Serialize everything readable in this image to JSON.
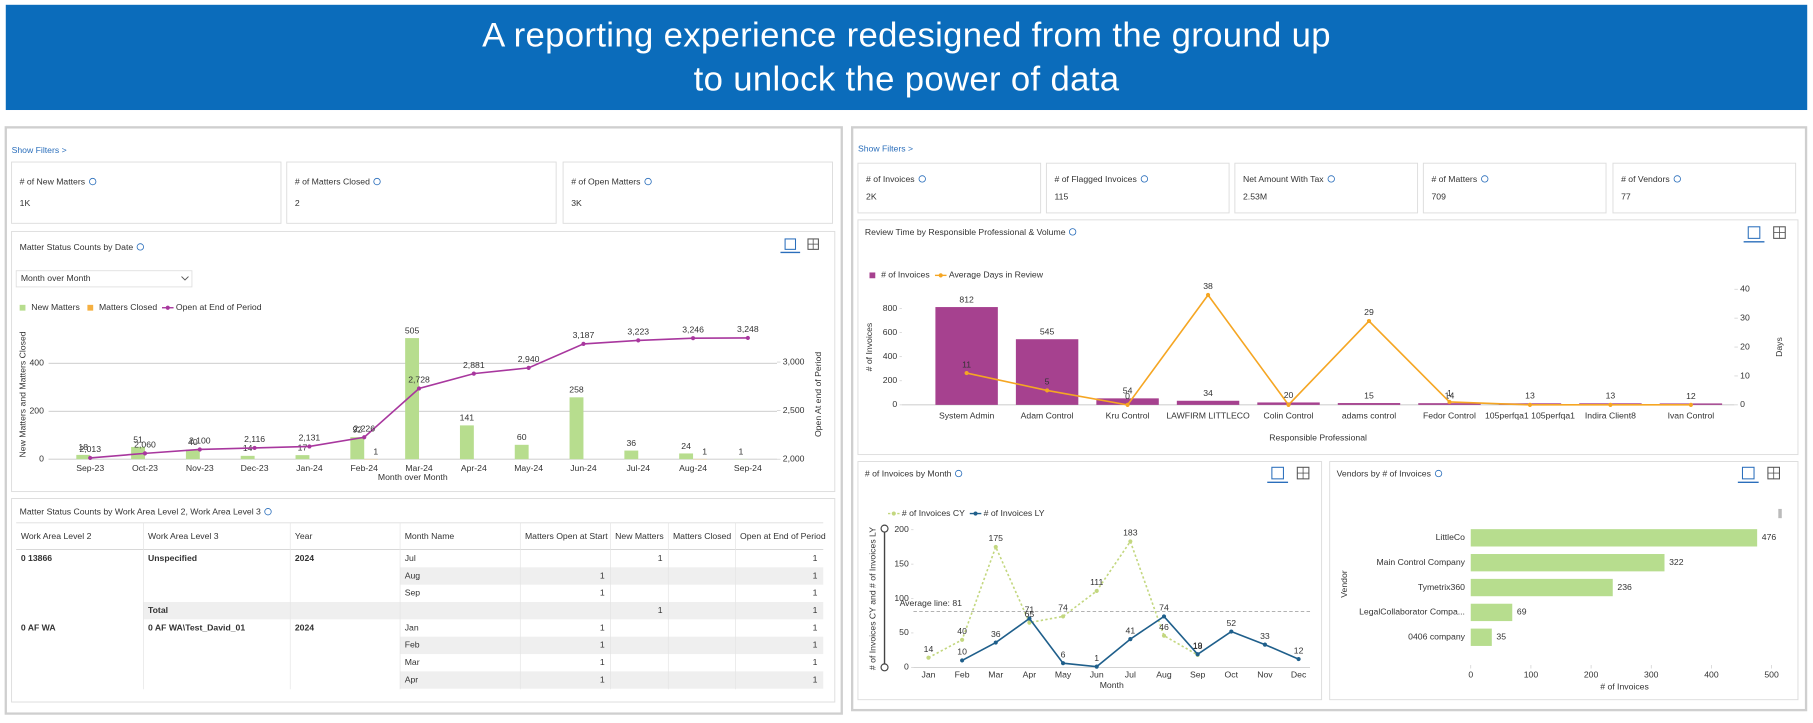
{
  "banner": {
    "title_lines": [
      "A reporting experience redesigned from the ground up",
      "to unlock the power of data"
    ]
  },
  "left": {
    "show_filters": "Show Filters >",
    "kpis": [
      {
        "label": "# of New Matters",
        "value": "1K"
      },
      {
        "label": "# of Matters Closed",
        "value": 2
      },
      {
        "label": "# of Open Matters",
        "value": "3K"
      }
    ],
    "status_chart": {
      "type": "combo",
      "title": "Matter Status Counts by Date",
      "period_select": "Month over Month",
      "x_label": "Month over Month",
      "y_label": "New Matters and Matters Closed",
      "y2_label": "Open At end of Period",
      "categories": [
        "Sep-23",
        "Oct-23",
        "Nov-23",
        "Dec-23",
        "Jan-24",
        "Feb-24",
        "Mar-24",
        "Apr-24",
        "May-24",
        "Jun-24",
        "Jul-24",
        "Aug-24",
        "Sep-24"
      ],
      "ylim": [
        0,
        540
      ],
      "yticks": [
        0,
        200,
        400
      ],
      "y2lim": [
        2000,
        3333
      ],
      "y2ticks": [
        {
          "value": 2000,
          "label": "2,000"
        },
        {
          "value": 2500,
          "label": "2,500"
        },
        {
          "value": 3000,
          "label": "3,000"
        }
      ],
      "grid": true,
      "series": [
        {
          "name": "New Matters",
          "kind": "bar",
          "color": "#b7dd8e",
          "values": [
            18,
            51,
            40,
            14,
            17,
            92,
            505,
            141,
            60,
            258,
            36,
            24,
            1
          ]
        },
        {
          "name": "Matters Closed",
          "kind": "bar",
          "color": "#f5b041",
          "values": [
            0,
            0,
            0,
            0,
            0,
            1,
            0,
            0,
            0,
            0,
            0,
            1,
            0
          ],
          "value_labels": [
            null,
            null,
            null,
            null,
            null,
            "1",
            null,
            null,
            null,
            null,
            null,
            "1",
            null
          ]
        },
        {
          "name": "Open at End of Period",
          "kind": "line",
          "axis": "y2",
          "color": "#a8379e",
          "values": [
            2013,
            2060,
            2100,
            2116,
            2131,
            2226,
            2728,
            2881,
            2940,
            3187,
            3223,
            3246,
            3248
          ],
          "value_labels": [
            "2,013",
            "2,060",
            "2,100",
            "2,116",
            "2,131",
            "2,226",
            "2,728",
            "2,881",
            "2,940",
            "3,187",
            "3,223",
            "3,246",
            "3,248"
          ]
        }
      ]
    },
    "matter_table": {
      "title": "Matter Status Counts by Work Area Level 2, Work Area Level 3",
      "columns": [
        "Work Area Level 2",
        "Work Area Level 3",
        "Year",
        "Month Name",
        "Matters Open at Start",
        "New Matters",
        "Matters Closed",
        "Open at End of Period"
      ],
      "rows": [
        [
          "0 13866",
          "Unspecified",
          2024,
          "Jul",
          null,
          1,
          null,
          1
        ],
        [
          null,
          null,
          null,
          "Aug",
          1,
          null,
          null,
          1
        ],
        [
          null,
          null,
          null,
          "Sep",
          1,
          null,
          null,
          1
        ],
        [
          null,
          "Total",
          null,
          null,
          null,
          1,
          null,
          1
        ],
        [
          "0 AF WA",
          "0 AF WA\\Test_David_01",
          2024,
          "Jan",
          1,
          null,
          null,
          1
        ],
        [
          null,
          null,
          null,
          "Feb",
          1,
          null,
          null,
          1
        ],
        [
          null,
          null,
          null,
          "Mar",
          1,
          null,
          null,
          1
        ],
        [
          null,
          null,
          null,
          "Apr",
          1,
          null,
          null,
          1
        ]
      ]
    }
  },
  "right": {
    "show_filters": "Show Filters >",
    "kpis": [
      {
        "label": "# of Invoices",
        "value": "2K"
      },
      {
        "label": "# of Flagged Invoices",
        "value": 115
      },
      {
        "label": "Net Amount With Tax",
        "value": "2.53M"
      },
      {
        "label": "# of Matters",
        "value": 709
      },
      {
        "label": "# of Vendors",
        "value": 77
      }
    ],
    "review_chart": {
      "type": "combo",
      "title": "Review Time by Responsible Professional & Volume",
      "x_label": "Responsible Professional",
      "y_label": "# of Invoices",
      "y2_label": "Days",
      "categories": [
        "System Admin",
        "Adam Control",
        "Kru Control",
        "LAWFIRM LITTLECO",
        "Colin Control",
        "adams control",
        "Fedor Control",
        "105perfqa1 105perfqa1",
        "Indira Client8",
        "Ivan Control"
      ],
      "ylim": [
        0,
        960
      ],
      "yticks": [
        0,
        200,
        400,
        600,
        800
      ],
      "y2lim": [
        0,
        40
      ],
      "y2ticks": [
        0,
        10,
        20,
        30,
        40
      ],
      "grid": false,
      "series": [
        {
          "name": "# of Invoices",
          "kind": "bar",
          "color": "#a6418f",
          "values": [
            812,
            545,
            54,
            34,
            20,
            15,
            14,
            13,
            13,
            12
          ]
        },
        {
          "name": "Average Days in Review",
          "kind": "line",
          "axis": "y2",
          "color": "#f5a623",
          "values": [
            11,
            5,
            0,
            38,
            0,
            29,
            1,
            0,
            0,
            0
          ],
          "value_labels": [
            "11",
            "5",
            "0",
            "38",
            null,
            "29",
            "1",
            null,
            null,
            null
          ]
        }
      ]
    },
    "month_chart": {
      "type": "combo",
      "title": "# of Invoices by Month",
      "x_label": "Month",
      "y_label": "# of Invoices CY and # of Invoices LY",
      "categories": [
        "Jan",
        "Feb",
        "Mar",
        "Apr",
        "May",
        "Jun",
        "Jul",
        "Aug",
        "Sep",
        "Oct",
        "Nov",
        "Dec"
      ],
      "ylim": [
        0,
        200
      ],
      "yticks": [
        0,
        50,
        100,
        150,
        200
      ],
      "grid": false,
      "average_line": {
        "value": 81,
        "label": "Average line: 81"
      },
      "series": [
        {
          "name": "# of Invoices CY",
          "kind": "line",
          "color": "#c3d77f",
          "dash": "2,2",
          "values": [
            14,
            40,
            175,
            65,
            74,
            111,
            183,
            46,
            18,
            null,
            null,
            null
          ]
        },
        {
          "name": "# of Invoices LY",
          "kind": "line",
          "color": "#1f5f8b",
          "values": [
            null,
            10,
            36,
            71,
            6,
            1,
            41,
            74,
            19,
            52,
            33,
            12
          ]
        }
      ]
    },
    "vendor_chart": {
      "type": "hbar",
      "title": "Vendors by # of Invoices",
      "x_label": "# of Invoices",
      "y_label": "Vendor",
      "categories": [
        "LittleCo",
        "Main Control Company",
        "Tymetrix360",
        "LegalCollaborator Compa...",
        "0406 company"
      ],
      "values": [
        476,
        322,
        236,
        69,
        35
      ],
      "color": "#b7dd8e",
      "xlim": [
        0,
        515
      ],
      "xticks": [
        0,
        100,
        200,
        300,
        400,
        500
      ]
    }
  }
}
